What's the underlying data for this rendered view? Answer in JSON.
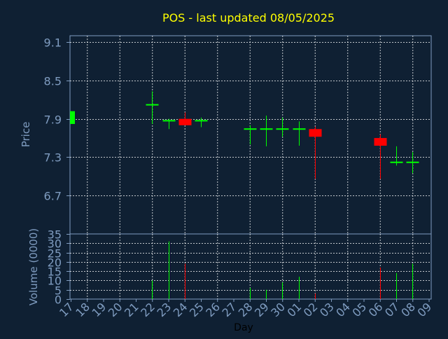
{
  "chart_data": {
    "title": "POS - last updated 08/05/2025",
    "xlabel": "Day",
    "colors": {
      "background": "#0f2033",
      "axis": "#7f9cc0",
      "grid": "#ffffff",
      "title": "#ffff00",
      "label": "#7f9cc0",
      "xlabel": "#000000",
      "up": "#00ff00",
      "down": "#ff0000"
    },
    "price_panel": {
      "type": "candlestick",
      "ylabel": "Price",
      "ylim": [
        6.1,
        9.2
      ],
      "yticks": [
        "6.7",
        "7.3",
        "7.9",
        "8.5",
        "9.1"
      ],
      "grid": true
    },
    "volume_panel": {
      "type": "bar",
      "ylabel": "Volume (0000)",
      "ylim": [
        0,
        35
      ],
      "yticks": [
        "0",
        "5",
        "10",
        "15",
        "20",
        "25",
        "30",
        "35"
      ],
      "grid": true
    },
    "days": [
      "17",
      "18",
      "19",
      "20",
      "21",
      "22",
      "23",
      "24",
      "25",
      "26",
      "27",
      "28",
      "29",
      "30",
      "01",
      "02",
      "03",
      "04",
      "05",
      "06",
      "07",
      "08",
      "09"
    ],
    "candles": [
      {
        "day": "17",
        "open": 7.82,
        "high": 8.02,
        "low": 7.82,
        "close": 8.02,
        "volume": 0
      },
      {
        "day": "22",
        "open": 8.12,
        "high": 8.33,
        "low": 7.82,
        "close": 8.12,
        "volume": 10
      },
      {
        "day": "23",
        "open": 7.87,
        "high": 7.9,
        "low": 7.74,
        "close": 7.87,
        "volume": 31
      },
      {
        "day": "24",
        "open": 7.9,
        "high": 8.0,
        "low": 7.8,
        "close": 7.8,
        "volume": 19
      },
      {
        "day": "25",
        "open": 7.87,
        "high": 7.92,
        "low": 7.77,
        "close": 7.87,
        "volume": 0
      },
      {
        "day": "28",
        "open": 7.74,
        "high": 7.8,
        "low": 7.5,
        "close": 7.74,
        "volume": 6
      },
      {
        "day": "29",
        "open": 7.74,
        "high": 7.95,
        "low": 7.47,
        "close": 7.74,
        "volume": 5
      },
      {
        "day": "30",
        "open": 7.74,
        "high": 7.92,
        "low": 7.62,
        "close": 7.74,
        "volume": 9
      },
      {
        "day": "01",
        "open": 7.74,
        "high": 7.86,
        "low": 7.48,
        "close": 7.74,
        "volume": 12
      },
      {
        "day": "02",
        "open": 7.74,
        "high": 7.78,
        "low": 6.96,
        "close": 7.62,
        "volume": 3
      },
      {
        "day": "06",
        "open": 7.6,
        "high": 7.66,
        "low": 6.96,
        "close": 7.48,
        "volume": 17
      },
      {
        "day": "07",
        "open": 7.22,
        "high": 7.47,
        "low": 7.17,
        "close": 7.22,
        "volume": 14
      },
      {
        "day": "08",
        "open": 7.22,
        "high": 7.38,
        "low": 7.05,
        "close": 7.22,
        "volume": 19
      }
    ]
  }
}
